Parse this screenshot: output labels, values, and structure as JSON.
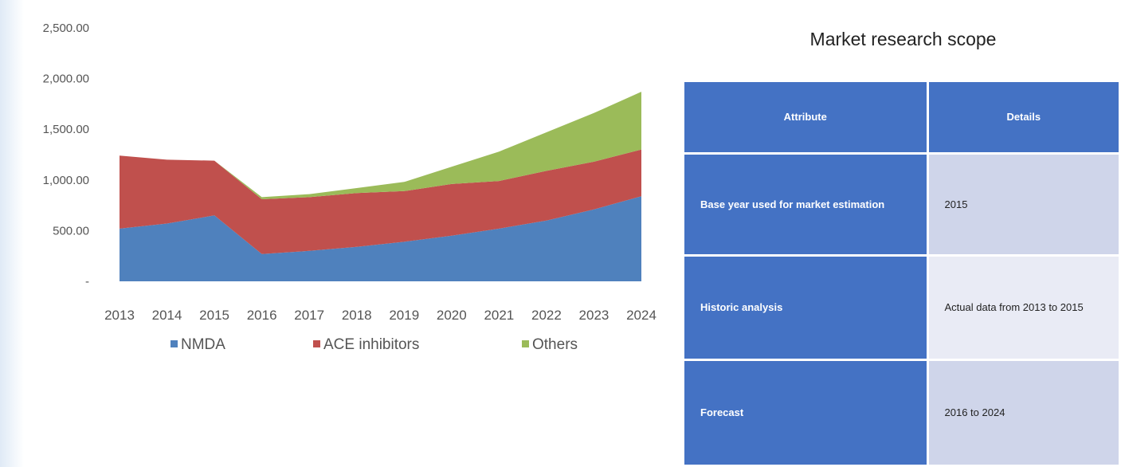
{
  "chart_data": {
    "type": "area",
    "stacked": true,
    "x": [
      "2013",
      "2014",
      "2015",
      "2016",
      "2017",
      "2018",
      "2019",
      "2020",
      "2021",
      "2022",
      "2023",
      "2024"
    ],
    "ylim": [
      0,
      2500
    ],
    "yticks": [
      {
        "value": 0,
        "label": "-"
      },
      {
        "value": 500,
        "label": "500.00"
      },
      {
        "value": 1000,
        "label": "1,000.00"
      },
      {
        "value": 1500,
        "label": "1,500.00"
      },
      {
        "value": 2000,
        "label": "2,000.00"
      },
      {
        "value": 2500,
        "label": "2,500.00"
      }
    ],
    "grid": false,
    "legend_position": "bottom",
    "series": [
      {
        "name": "NMDA",
        "color": "#4f81bd",
        "values": [
          520,
          570,
          650,
          270,
          300,
          340,
          390,
          450,
          520,
          600,
          710,
          840
        ]
      },
      {
        "name": "ACE inhibitors",
        "color": "#c0504d",
        "values": [
          720,
          630,
          540,
          540,
          530,
          530,
          500,
          510,
          470,
          490,
          470,
          460
        ]
      },
      {
        "name": "Others",
        "color": "#9bbb59",
        "values": [
          0,
          0,
          0,
          20,
          30,
          50,
          90,
          170,
          290,
          380,
          480,
          570
        ]
      }
    ]
  },
  "scope": {
    "title": "Market research scope",
    "header": {
      "attribute": "Attribute",
      "details": "Details"
    },
    "rows": [
      {
        "attribute": "Base year used for market estimation",
        "details": "2015"
      },
      {
        "attribute": "Historic analysis",
        "details": "Actual data from 2013 to 2015"
      },
      {
        "attribute": "Forecast",
        "details": "2016 to 2024"
      }
    ]
  }
}
